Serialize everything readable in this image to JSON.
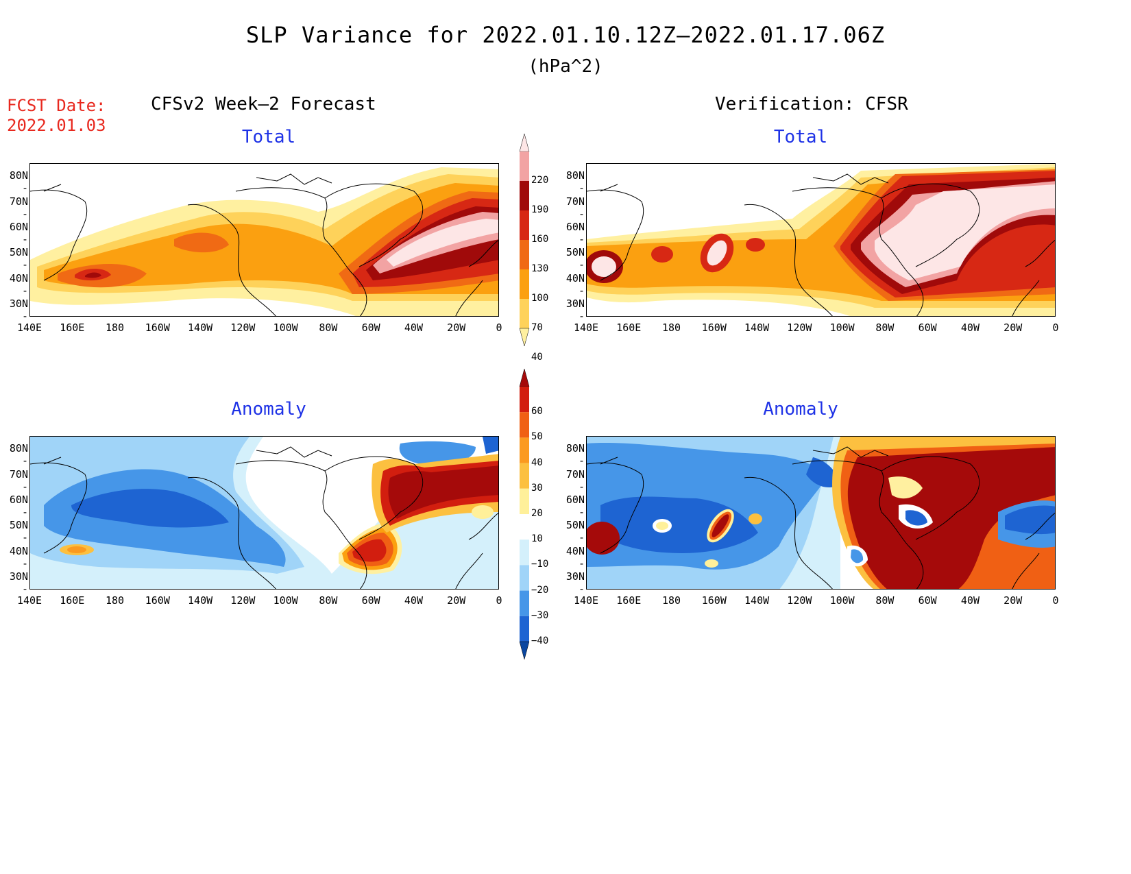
{
  "title": "SLP Variance for 2022.01.10.12Z–2022.01.17.06Z",
  "units": "(hPa^2)",
  "fcst_date_label": "FCST Date:",
  "fcst_date_value": "2022.01.03",
  "left_column_title": "CFSv2 Week–2 Forecast",
  "right_column_title": "Verification: CFSR",
  "panel_titles": {
    "top_left": "Total",
    "top_right": "Total",
    "bottom_left": "Anomaly",
    "bottom_right": "Anomaly"
  },
  "lat_ticks": [
    "80N",
    "70N",
    "60N",
    "50N",
    "40N",
    "30N"
  ],
  "lon_ticks": [
    "140E",
    "160E",
    "180",
    "160W",
    "140W",
    "120W",
    "100W",
    "80W",
    "60W",
    "40W",
    "20W",
    "0"
  ],
  "total_colorbar": {
    "levels": [
      "220",
      "190",
      "160",
      "130",
      "100",
      "70",
      "40"
    ],
    "colors": [
      "#fde6e6",
      "#f2a3a3",
      "#a00a0a",
      "#d72814",
      "#f06a14",
      "#fba010",
      "#fed25a",
      "#fff0a0"
    ]
  },
  "anomaly_colorbar": {
    "levels": [
      "60",
      "50",
      "40",
      "30",
      "20",
      "10",
      "−10",
      "−20",
      "−30",
      "−40"
    ],
    "colors": [
      "#a50a0a",
      "#d21e0f",
      "#f06014",
      "#fb9a20",
      "#fcc040",
      "#fff09a",
      "#ffffff",
      "#d4f0fb",
      "#a0d4f8",
      "#4696e8",
      "#1e64d2",
      "#0a46a0"
    ]
  },
  "colors": {
    "title_red": "#e8281e",
    "subtitle_blue": "#1e32e6"
  }
}
